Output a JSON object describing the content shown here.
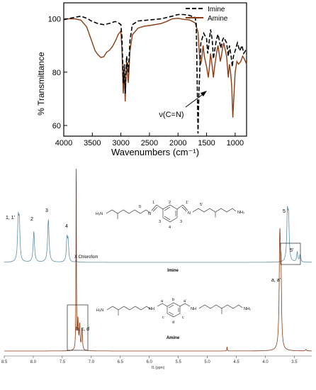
{
  "chart_data": [
    {
      "type": "line",
      "title": "",
      "xlabel": "Wavenumbers (cm⁻¹)",
      "ylabel": "% Transmittance",
      "xlim": [
        4000,
        800
      ],
      "ylim": [
        56,
        106
      ],
      "x_ticks": [
        4000,
        3500,
        3000,
        2500,
        2000,
        1500,
        1000
      ],
      "y_ticks": [
        60,
        80,
        100
      ],
      "legend_position": "top-right",
      "series": [
        {
          "name": "Imine",
          "color": "#000000",
          "dash": true,
          "points": [
            [
              4000,
              99.7
            ],
            [
              3800,
              100.6
            ],
            [
              3700,
              101
            ],
            [
              3600,
              100.2
            ],
            [
              3500,
              99
            ],
            [
              3400,
              98.2
            ],
            [
              3300,
              97.8
            ],
            [
              3200,
              98.3
            ],
            [
              3100,
              99
            ],
            [
              3050,
              98.6
            ],
            [
              3000,
              97.8
            ],
            [
              2980,
              93
            ],
            [
              2960,
              76
            ],
            [
              2940,
              83
            ],
            [
              2925,
              72
            ],
            [
              2900,
              86
            ],
            [
              2870,
              80
            ],
            [
              2840,
              92
            ],
            [
              2800,
              97.8
            ],
            [
              2700,
              99.2
            ],
            [
              2500,
              99.6
            ],
            [
              2300,
              100
            ],
            [
              2100,
              101
            ],
            [
              2000,
              101.6
            ],
            [
              1900,
              101.6
            ],
            [
              1800,
              101.3
            ],
            [
              1700,
              100.5
            ],
            [
              1680,
              98
            ],
            [
              1650,
              57
            ],
            [
              1635,
              72
            ],
            [
              1600,
              91
            ],
            [
              1550,
              94.6
            ],
            [
              1500,
              92.5
            ],
            [
              1480,
              87
            ],
            [
              1460,
              90.5
            ],
            [
              1430,
              96
            ],
            [
              1400,
              92
            ],
            [
              1380,
              85
            ],
            [
              1360,
              88
            ],
            [
              1330,
              92
            ],
            [
              1300,
              94.2
            ],
            [
              1250,
              89
            ],
            [
              1220,
              92
            ],
            [
              1200,
              93
            ],
            [
              1150,
              91
            ],
            [
              1120,
              86
            ],
            [
              1100,
              90
            ],
            [
              1070,
              86
            ],
            [
              1050,
              82
            ],
            [
              1030,
              86
            ],
            [
              1000,
              88
            ],
            [
              960,
              91
            ],
            [
              920,
              88
            ],
            [
              880,
              90
            ],
            [
              850,
              87
            ],
            [
              820,
              88
            ],
            [
              800,
              87
            ]
          ]
        },
        {
          "name": "Amine",
          "color": "#8b3a12",
          "dash": false,
          "points": [
            [
              4000,
              100
            ],
            [
              3800,
              100
            ],
            [
              3700,
              99.5
            ],
            [
              3600,
              97
            ],
            [
              3500,
              91
            ],
            [
              3450,
              88
            ],
            [
              3400,
              86.5
            ],
            [
              3350,
              85.5
            ],
            [
              3300,
              85.8
            ],
            [
              3250,
              87.5
            ],
            [
              3200,
              88.2
            ],
            [
              3150,
              89.5
            ],
            [
              3100,
              91.5
            ],
            [
              3050,
              94
            ],
            [
              3000,
              95.5
            ],
            [
              2980,
              88
            ],
            [
              2960,
              72
            ],
            [
              2940,
              80
            ],
            [
              2925,
              69
            ],
            [
              2900,
              84
            ],
            [
              2870,
              76
            ],
            [
              2840,
              88
            ],
            [
              2800,
              94
            ],
            [
              2700,
              96.5
            ],
            [
              2600,
              97.2
            ],
            [
              2500,
              97.5
            ],
            [
              2300,
              98.2
            ],
            [
              2200,
              99
            ],
            [
              2100,
              100
            ],
            [
              2000,
              100.2
            ],
            [
              1900,
              99.8
            ],
            [
              1800,
              99.6
            ],
            [
              1700,
              98.5
            ],
            [
              1650,
              95
            ],
            [
              1620,
              85
            ],
            [
              1600,
              83
            ],
            [
              1580,
              86
            ],
            [
              1560,
              90
            ],
            [
              1540,
              86
            ],
            [
              1500,
              82
            ],
            [
              1470,
              78
            ],
            [
              1450,
              82
            ],
            [
              1430,
              87
            ],
            [
              1400,
              82
            ],
            [
              1380,
              78
            ],
            [
              1360,
              82
            ],
            [
              1340,
              85
            ],
            [
              1320,
              88
            ],
            [
              1300,
              90
            ],
            [
              1280,
              87
            ],
            [
              1260,
              84
            ],
            [
              1240,
              86
            ],
            [
              1220,
              89
            ],
            [
              1200,
              91
            ],
            [
              1180,
              89
            ],
            [
              1150,
              86
            ],
            [
              1120,
              78
            ],
            [
              1100,
              83
            ],
            [
              1080,
              80
            ],
            [
              1060,
              75
            ],
            [
              1040,
              63
            ],
            [
              1020,
              72
            ],
            [
              1000,
              80
            ],
            [
              970,
              84
            ],
            [
              940,
              83
            ],
            [
              900,
              84
            ],
            [
              870,
              86
            ],
            [
              840,
              85
            ],
            [
              820,
              84
            ],
            [
              800,
              83
            ]
          ]
        }
      ],
      "annotations": [
        {
          "text": "ν(C=N)",
          "x": 1650,
          "y": 57
        }
      ]
    },
    {
      "type": "line",
      "title": "",
      "xlabel": "f1 (ppm)",
      "ylabel": "",
      "xlim": [
        8.5,
        3.2
      ],
      "x_ticks": [
        8.5,
        8.0,
        7.5,
        7.0,
        6.5,
        6.0,
        5.5,
        5.0,
        4.5,
        4.0,
        3.5
      ],
      "series": [
        {
          "name": "Imine",
          "color": "#5f8fa8",
          "peaks": [
            {
              "ppm": 8.26,
              "height": 0.55,
              "width": 0.013
            },
            {
              "ppm": 8.24,
              "height": 0.5,
              "width": 0.013
            },
            {
              "ppm": 7.99,
              "height": 0.43,
              "width": 0.014
            },
            {
              "ppm": 7.74,
              "height": 0.6,
              "width": 0.015
            },
            {
              "ppm": 7.42,
              "height": 0.3,
              "width": 0.012
            },
            {
              "ppm": 7.4,
              "height": 0.28,
              "width": 0.012
            },
            {
              "ppm": 7.26,
              "height": 0.05,
              "width": 0.006
            },
            {
              "ppm": 3.62,
              "height": 0.62,
              "width": 0.013
            },
            {
              "ppm": 3.6,
              "height": 0.55,
              "width": 0.013
            },
            {
              "ppm": 3.45,
              "height": 0.14,
              "width": 0.012
            },
            {
              "ppm": 3.4,
              "height": 0.1,
              "width": 0.012
            }
          ]
        },
        {
          "name": "Amine",
          "color": "#8b3a12",
          "peaks": [
            {
              "ppm": 7.26,
              "height": 2.9,
              "width": 0.004
            },
            {
              "ppm": 7.23,
              "height": 0.4,
              "width": 0.009
            },
            {
              "ppm": 7.2,
              "height": 0.34,
              "width": 0.009
            },
            {
              "ppm": 7.16,
              "height": 0.3,
              "width": 0.009
            },
            {
              "ppm": 4.66,
              "height": 0.06,
              "width": 0.004
            },
            {
              "ppm": 3.75,
              "height": 1.55,
              "width": 0.013
            },
            {
              "ppm": 3.73,
              "height": 0.9,
              "width": 0.01
            },
            {
              "ppm": 3.3,
              "height": 0.02,
              "width": 0.01
            }
          ]
        }
      ],
      "series_labels": [
        "Imine",
        "Amine"
      ],
      "annotations": [
        "1, 1'",
        "2",
        "3",
        "4",
        "5",
        "5'",
        "X Chlorofom",
        "a, a'",
        "b, c, d"
      ],
      "structures": {
        "imine": {
          "H2N": "H₂N",
          "NH2": "NH₂",
          "N": "N",
          "N2": "N",
          "n1": "1",
          "n1p": "1'",
          "n2": "2",
          "n3a": "3",
          "n3b": "3",
          "n4": "4",
          "n5": "5",
          "n5p": "5'"
        },
        "amine": {
          "H2N": "H₂N",
          "NH2": "NH₂",
          "NH": "NH",
          "NH2b": "NH",
          "a": "a",
          "ap": "a'",
          "b": "b",
          "c1": "c",
          "c2": "c",
          "d": "d"
        }
      }
    }
  ]
}
